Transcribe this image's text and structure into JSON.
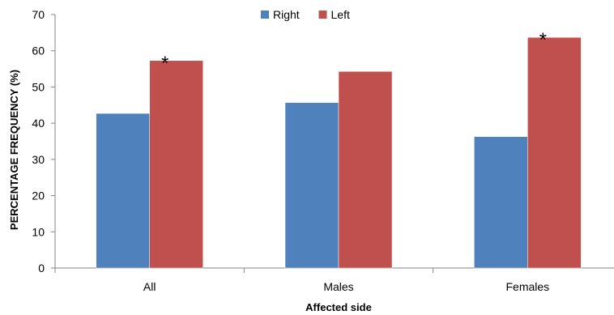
{
  "chart_data": {
    "type": "bar",
    "categories": [
      "All",
      "Males",
      "Females"
    ],
    "series": [
      {
        "name": "Right",
        "color": "#4f81bd",
        "values": [
          42.7,
          45.7,
          36.3
        ]
      },
      {
        "name": "Left",
        "color": "#c0504d",
        "values": [
          57.3,
          54.3,
          63.7
        ]
      }
    ],
    "significance": [
      "*",
      "",
      "*"
    ],
    "xlabel": "Affected side",
    "ylabel": "PERCENTAGE FREQUENCY (%)",
    "ylim": [
      0,
      70
    ],
    "yticks": [
      0,
      10,
      20,
      30,
      40,
      50,
      60,
      70
    ],
    "grid": false,
    "legend_position": "top-center"
  }
}
